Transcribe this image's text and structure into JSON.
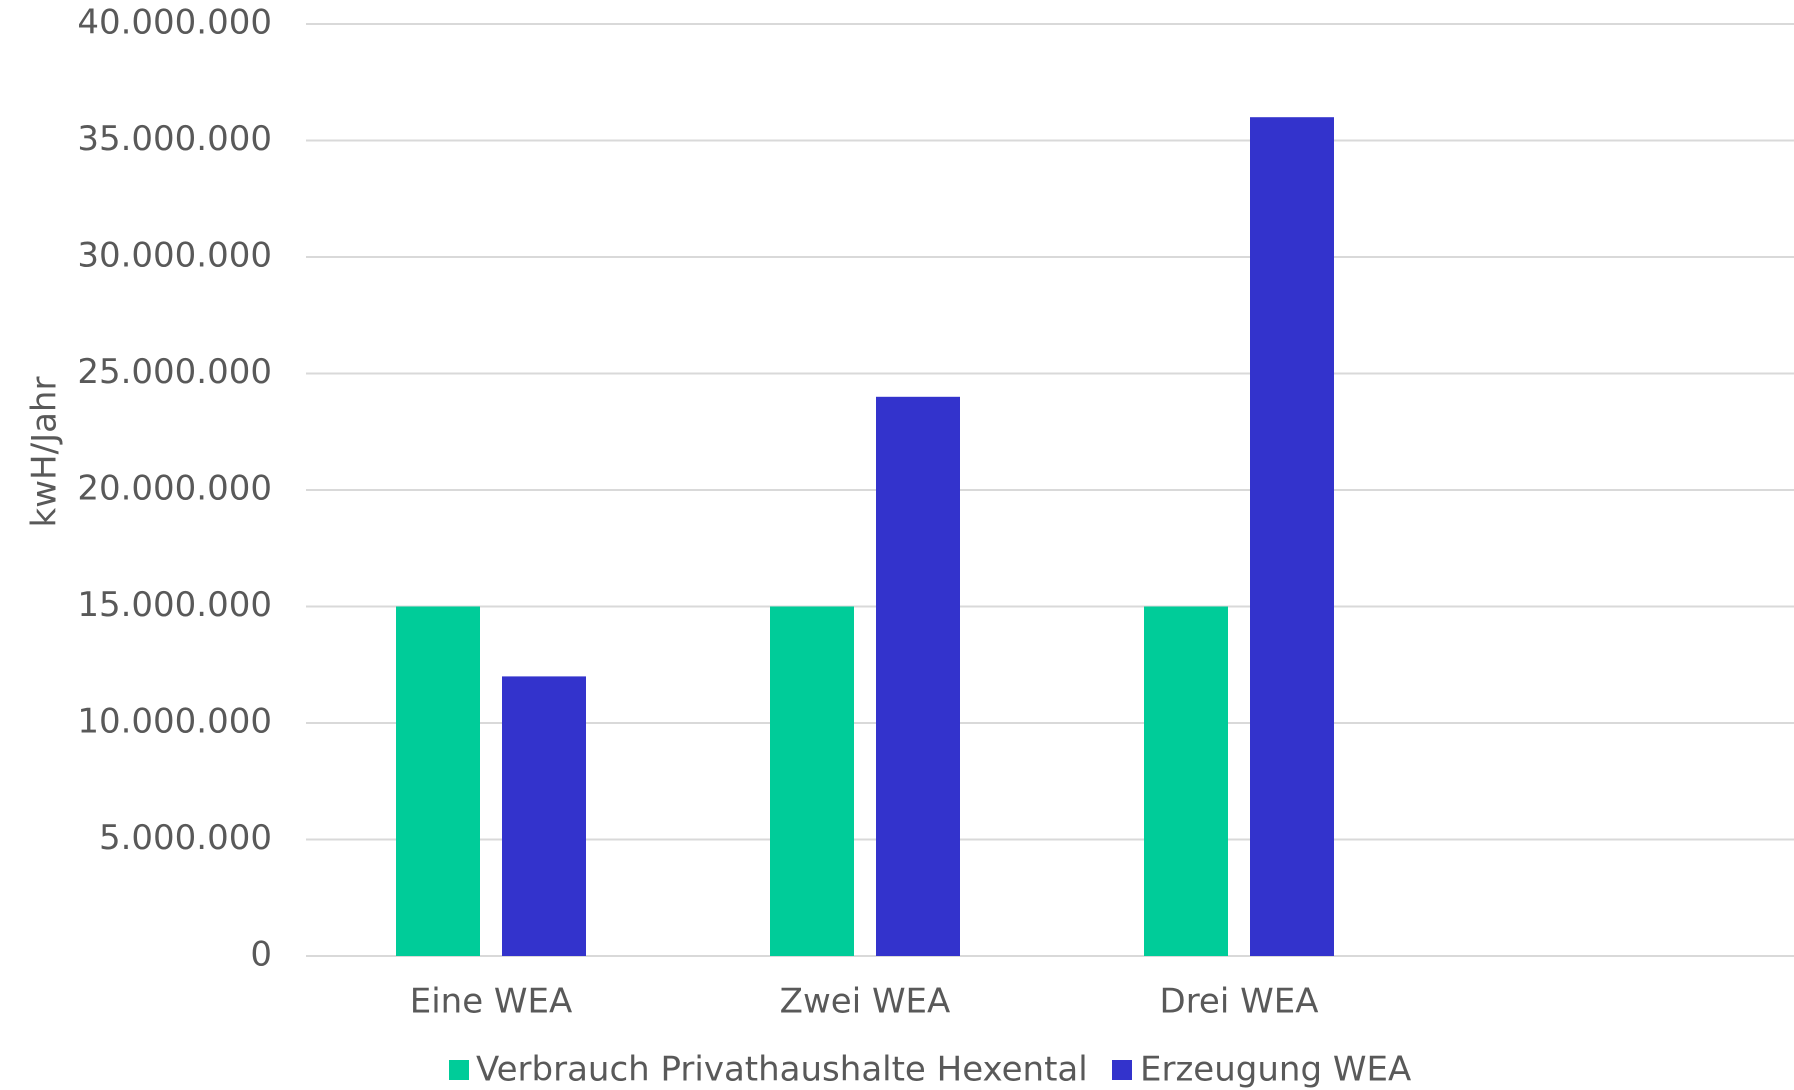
{
  "chart_data": {
    "type": "bar",
    "categories": [
      "Eine WEA",
      "Zwei WEA",
      "Drei WEA"
    ],
    "series": [
      {
        "name": "Verbrauch Privathaushalte Hexental",
        "color": "#00cc99",
        "values": [
          15000000,
          15000000,
          15000000
        ]
      },
      {
        "name": "Erzeugung WEA",
        "color": "#3333cc",
        "values": [
          12000000,
          24000000,
          36000000
        ]
      }
    ],
    "ylabel": "kwH/Jahr",
    "ylim": [
      0,
      40000000
    ],
    "yticks": [
      0,
      5000000,
      10000000,
      15000000,
      20000000,
      25000000,
      30000000,
      35000000,
      40000000
    ],
    "ytick_labels": [
      "0",
      "5.000.000",
      "10.000.000",
      "15.000.000",
      "20.000.000",
      "25.000.000",
      "30.000.000",
      "35.000.000",
      "40.000.000"
    ],
    "grid": true,
    "legend_position": "bottom"
  }
}
